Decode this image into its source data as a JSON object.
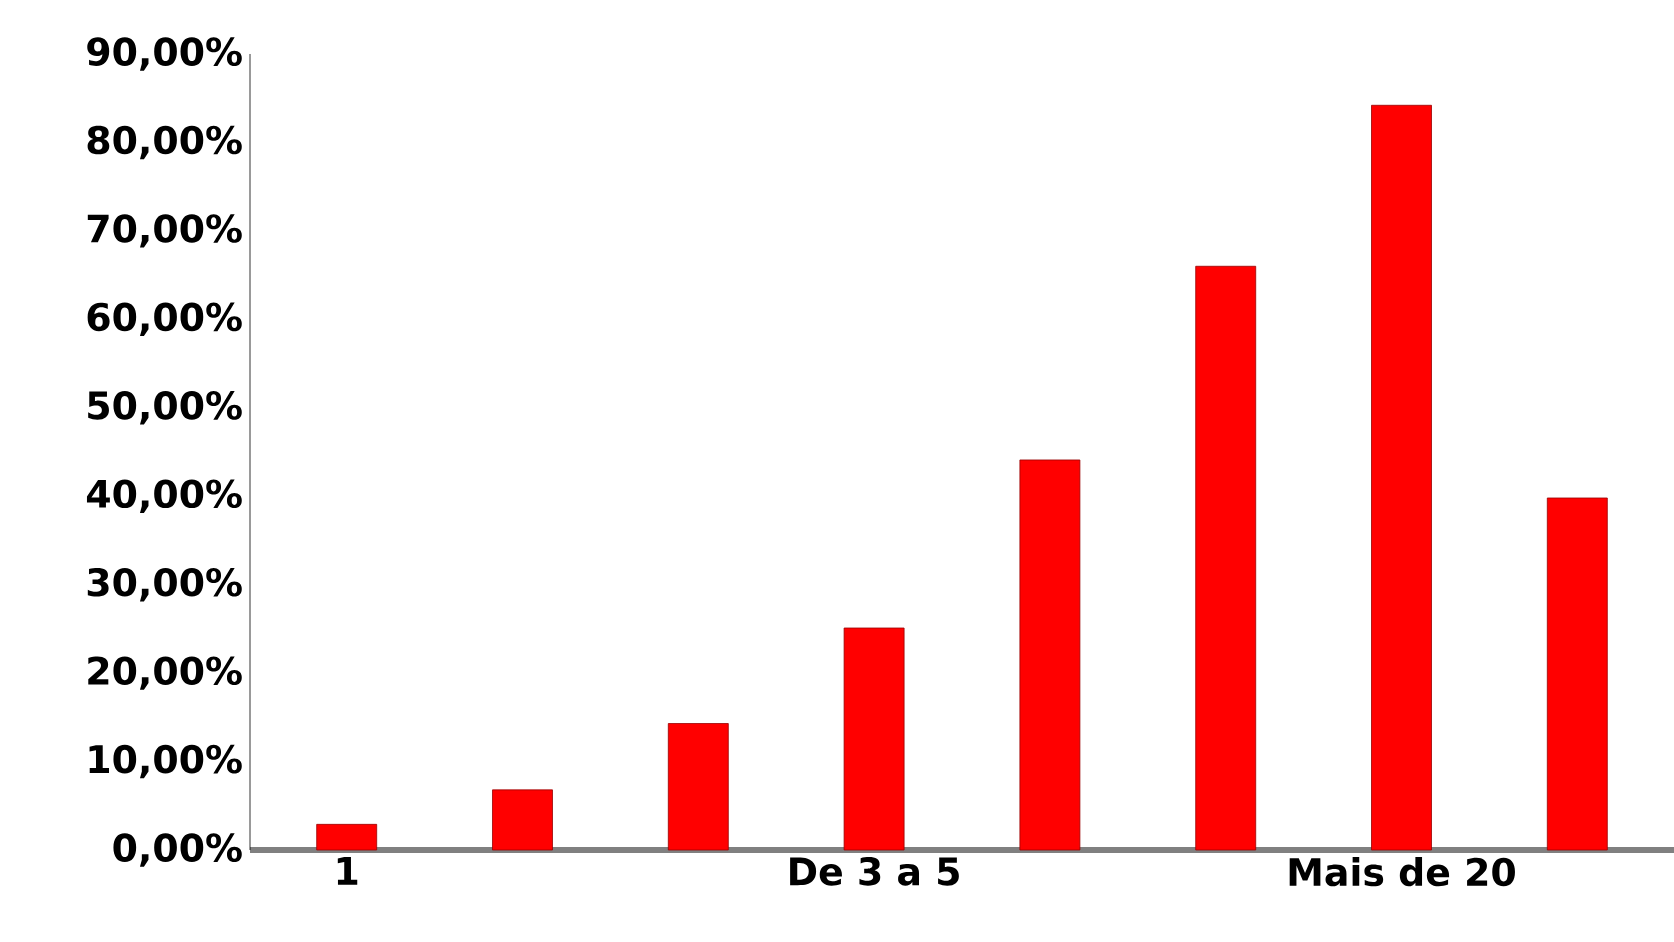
{
  "chart_data": {
    "type": "bar",
    "categories": [
      "1",
      null,
      null,
      "De 3 a 5",
      null,
      null,
      "Mais de 20",
      null
    ],
    "values": [
      2.9,
      6.8,
      14.3,
      25.1,
      44.1,
      66.0,
      84.2,
      39.8
    ],
    "color": "#ff0000",
    "ylim": [
      0,
      90
    ],
    "yticks": [
      {
        "value": 0,
        "label": "0,00%"
      },
      {
        "value": 10,
        "label": "10,00%"
      },
      {
        "value": 20,
        "label": "20,00%"
      },
      {
        "value": 30,
        "label": "30,00%"
      },
      {
        "value": 40,
        "label": "40,00%"
      },
      {
        "value": 50,
        "label": "50,00%"
      },
      {
        "value": 60,
        "label": "60,00%"
      },
      {
        "value": 70,
        "label": "70,00%"
      },
      {
        "value": 80,
        "label": "80,00%"
      },
      {
        "value": 90,
        "label": "90,00%"
      }
    ],
    "grid": false
  }
}
